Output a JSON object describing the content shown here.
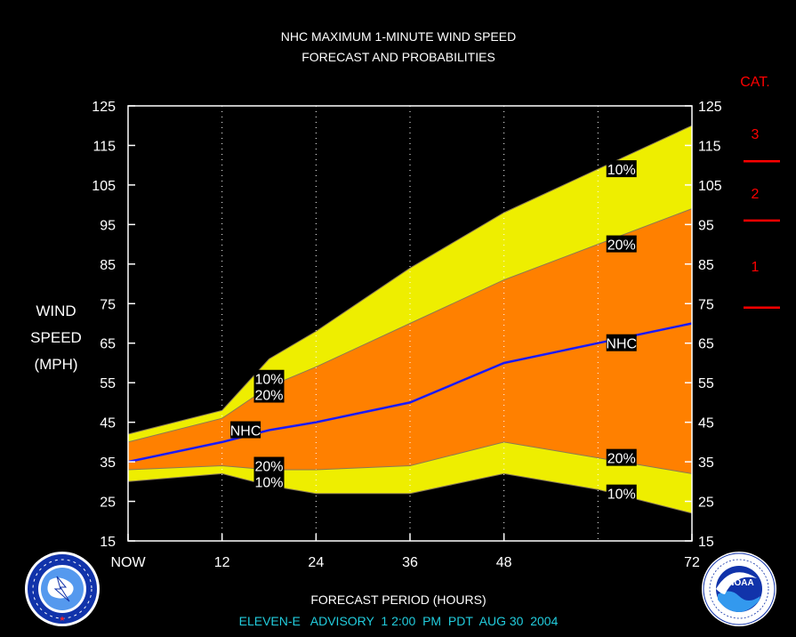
{
  "title_line1": "NHC MAXIMUM 1-MINUTE WIND SPEED",
  "title_line2": "FORECAST AND PROBABILITIES",
  "cat_header": "CAT.",
  "categories": [
    {
      "label": "3",
      "from": 111,
      "to": 125
    },
    {
      "label": "2",
      "from": 96,
      "to": 110
    },
    {
      "label": "1",
      "from": 74,
      "to": 95
    }
  ],
  "category_thresholds": [
    111,
    96,
    74
  ],
  "ylabel_lines": [
    "WIND",
    "SPEED",
    "(MPH)"
  ],
  "xlabel": "FORECAST PERIOD (HOURS)",
  "advisory": "ELEVEN-E   ADVISORY  1 2:00  PM  PDT  AUG 30  2004",
  "colors": {
    "background": "#000000",
    "band_10_90": "#eeee00",
    "band_20_80": "#ff8000",
    "nhc_line": "#1a1aff",
    "category": "#ff0000",
    "footer_text": "#22ccdd",
    "text": "#ffffff"
  },
  "logos": {
    "left": "national-weather-service-logo",
    "right": "noaa-logo"
  },
  "chart_data": {
    "type": "area",
    "xlim": [
      0,
      72
    ],
    "ylim": [
      15,
      125
    ],
    "xticks": [
      0,
      12,
      24,
      36,
      48,
      72
    ],
    "xtick_labels": [
      "NOW",
      "12",
      "24",
      "36",
      "48",
      "72"
    ],
    "yticks": [
      15,
      25,
      35,
      45,
      55,
      65,
      75,
      85,
      95,
      105,
      115,
      125
    ],
    "grid_x": [
      12,
      24,
      36,
      48,
      60
    ],
    "x": [
      0,
      12,
      18,
      24,
      36,
      48,
      60,
      72
    ],
    "series": [
      {
        "name": "10%",
        "values": [
          42,
          48,
          61,
          68,
          84,
          98,
          109,
          120
        ]
      },
      {
        "name": "20%",
        "values": [
          40,
          46,
          54,
          59,
          70,
          81,
          90,
          99
        ]
      },
      {
        "name": "NHC",
        "values": [
          35,
          40,
          43,
          45,
          50,
          60,
          65,
          70
        ]
      },
      {
        "name": "20%",
        "values": [
          33,
          34,
          33,
          33,
          34,
          40,
          36,
          32
        ]
      },
      {
        "name": "10%",
        "values": [
          30,
          32,
          29,
          27,
          27,
          32,
          28,
          22
        ]
      }
    ],
    "labels": [
      {
        "text": "10%",
        "x": 18,
        "y": 56
      },
      {
        "text": "20%",
        "x": 18,
        "y": 52
      },
      {
        "text": "NHC",
        "x": 15,
        "y": 43
      },
      {
        "text": "20%",
        "x": 18,
        "y": 34
      },
      {
        "text": "10%",
        "x": 18,
        "y": 30
      },
      {
        "text": "10%",
        "x": 63,
        "y": 109
      },
      {
        "text": "20%",
        "x": 63,
        "y": 90
      },
      {
        "text": "NHC",
        "x": 63,
        "y": 65
      },
      {
        "text": "20%",
        "x": 63,
        "y": 36
      },
      {
        "text": "10%",
        "x": 63,
        "y": 27
      }
    ]
  }
}
